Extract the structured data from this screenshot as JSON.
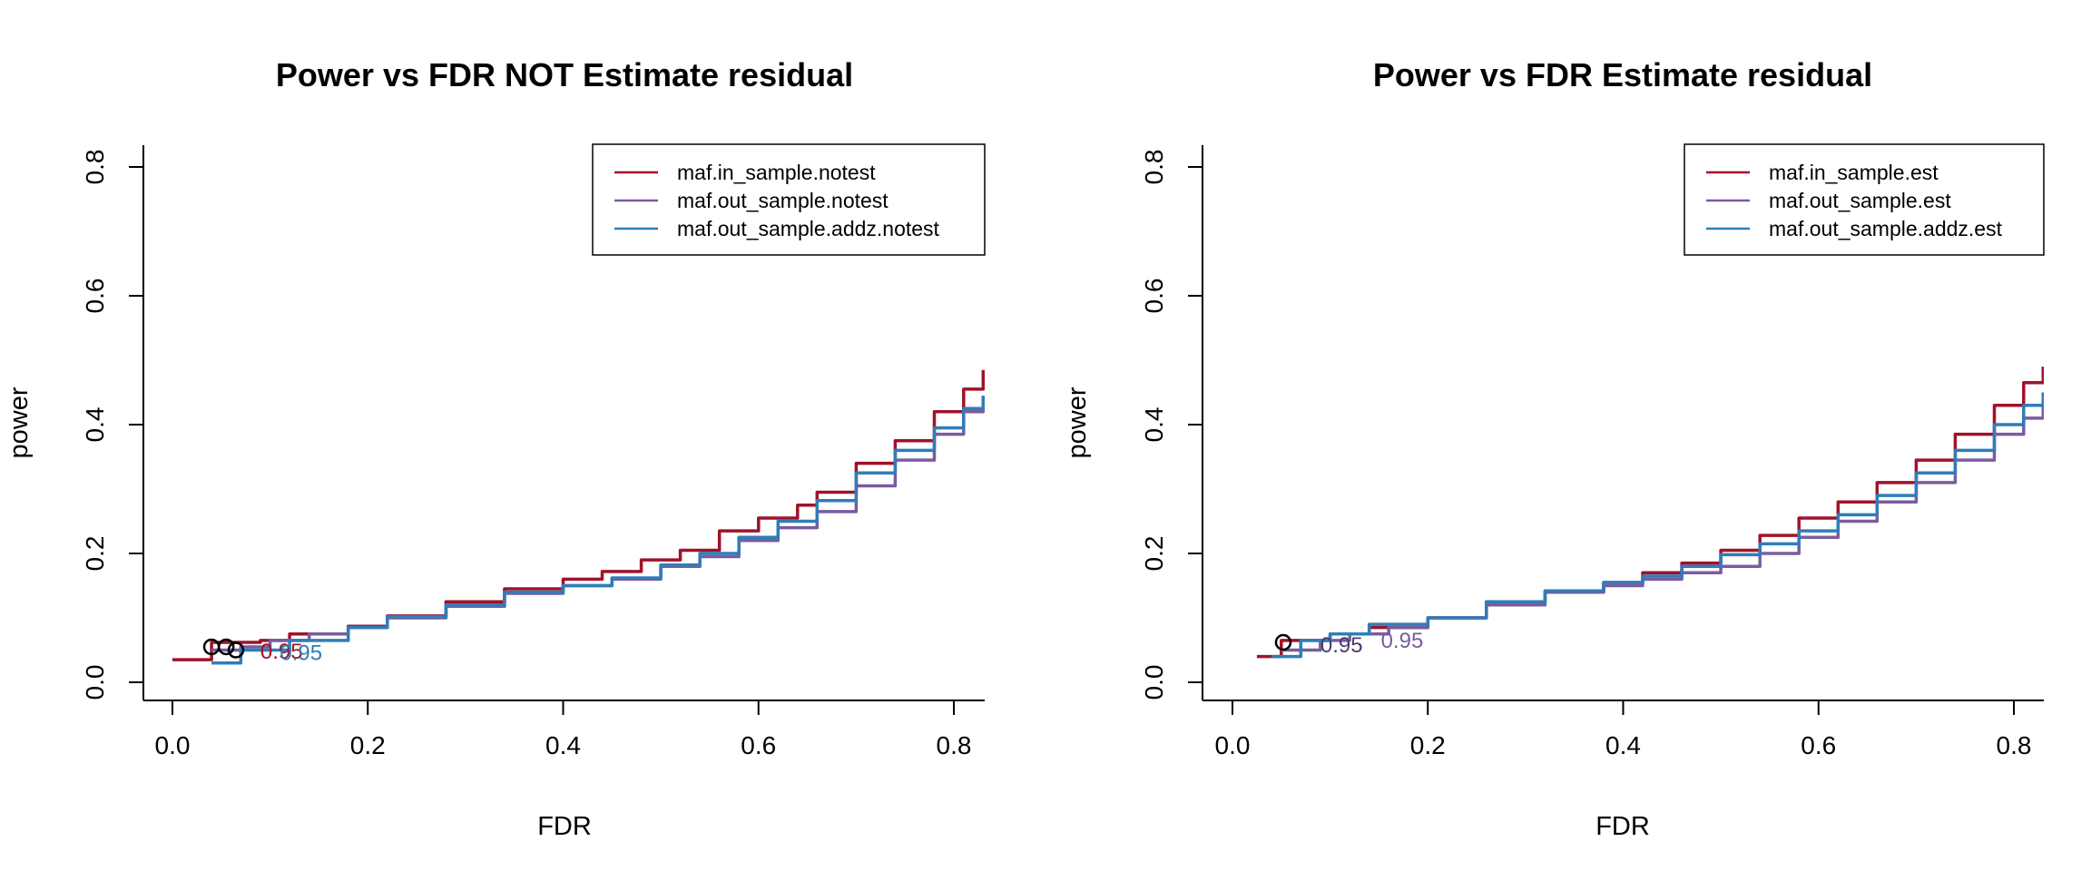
{
  "chart_data": [
    {
      "type": "line",
      "title": "Power vs FDR NOT Estimate residual",
      "xlabel": "FDR",
      "ylabel": "power",
      "xlim": [
        0,
        0.83
      ],
      "ylim": [
        0,
        0.83
      ],
      "xticks": [
        "0.0",
        "0.2",
        "0.4",
        "0.6",
        "0.8"
      ],
      "yticks": [
        "0.0",
        "0.2",
        "0.4",
        "0.6",
        "0.8"
      ],
      "xtick_values": [
        0,
        0.2,
        0.4,
        0.6,
        0.8
      ],
      "ytick_values": [
        0,
        0.2,
        0.4,
        0.6,
        0.8
      ],
      "grid": false,
      "legend": "top-right",
      "series": [
        {
          "name": "maf.in_sample.notest",
          "color": "#A0122A",
          "x": [
            0.0,
            0.04,
            0.04,
            0.06,
            0.09,
            0.12,
            0.18,
            0.22,
            0.28,
            0.34,
            0.4,
            0.44,
            0.48,
            0.52,
            0.56,
            0.6,
            0.64,
            0.66,
            0.7,
            0.74,
            0.78,
            0.81,
            0.83
          ],
          "y": [
            0.035,
            0.035,
            0.062,
            0.062,
            0.065,
            0.075,
            0.087,
            0.103,
            0.125,
            0.145,
            0.16,
            0.172,
            0.19,
            0.205,
            0.235,
            0.255,
            0.275,
            0.295,
            0.34,
            0.375,
            0.42,
            0.455,
            0.485
          ]
        },
        {
          "name": "maf.out_sample.notest",
          "color": "#7A5C9E",
          "x": [
            0.04,
            0.07,
            0.1,
            0.14,
            0.18,
            0.22,
            0.28,
            0.34,
            0.4,
            0.45,
            0.5,
            0.54,
            0.58,
            0.62,
            0.66,
            0.7,
            0.74,
            0.78,
            0.81,
            0.83
          ],
          "y": [
            0.05,
            0.055,
            0.065,
            0.075,
            0.085,
            0.1,
            0.118,
            0.138,
            0.15,
            0.16,
            0.18,
            0.195,
            0.22,
            0.24,
            0.265,
            0.305,
            0.345,
            0.385,
            0.42,
            0.44
          ]
        },
        {
          "name": "maf.out_sample.addz.notest",
          "color": "#2F7DB8",
          "x": [
            0.04,
            0.07,
            0.07,
            0.12,
            0.18,
            0.22,
            0.28,
            0.34,
            0.4,
            0.45,
            0.5,
            0.54,
            0.58,
            0.62,
            0.66,
            0.7,
            0.74,
            0.78,
            0.81,
            0.83
          ],
          "y": [
            0.03,
            0.03,
            0.05,
            0.065,
            0.085,
            0.102,
            0.12,
            0.14,
            0.15,
            0.162,
            0.182,
            0.2,
            0.225,
            0.25,
            0.282,
            0.325,
            0.36,
            0.395,
            0.425,
            0.445
          ]
        }
      ],
      "annotations": [
        {
          "text": "0.95",
          "x": 0.09,
          "y": 0.048,
          "color": "#A0122A"
        },
        {
          "text": "0.95",
          "x": 0.11,
          "y": 0.046,
          "color": "#2F7DB8"
        }
      ],
      "markers": [
        {
          "x": 0.04,
          "y": 0.055
        },
        {
          "x": 0.055,
          "y": 0.055
        },
        {
          "x": 0.065,
          "y": 0.05
        }
      ]
    },
    {
      "type": "line",
      "title": "Power vs FDR Estimate residual",
      "xlabel": "FDR",
      "ylabel": "power",
      "xlim": [
        0,
        0.83
      ],
      "ylim": [
        0,
        0.83
      ],
      "xticks": [
        "0.0",
        "0.2",
        "0.4",
        "0.6",
        "0.8"
      ],
      "yticks": [
        "0.0",
        "0.2",
        "0.4",
        "0.6",
        "0.8"
      ],
      "xtick_values": [
        0,
        0.2,
        0.4,
        0.6,
        0.8
      ],
      "ytick_values": [
        0,
        0.2,
        0.4,
        0.6,
        0.8
      ],
      "grid": false,
      "legend": "top-right",
      "series": [
        {
          "name": "maf.in_sample.est",
          "color": "#A0122A",
          "x": [
            0.025,
            0.05,
            0.1,
            0.14,
            0.2,
            0.26,
            0.32,
            0.38,
            0.42,
            0.46,
            0.5,
            0.54,
            0.58,
            0.62,
            0.66,
            0.7,
            0.74,
            0.78,
            0.81,
            0.83
          ],
          "y": [
            0.04,
            0.065,
            0.075,
            0.085,
            0.1,
            0.125,
            0.14,
            0.155,
            0.17,
            0.185,
            0.205,
            0.228,
            0.255,
            0.28,
            0.31,
            0.345,
            0.385,
            0.43,
            0.465,
            0.49
          ]
        },
        {
          "name": "maf.out_sample.est",
          "color": "#7A5C9E",
          "x": [
            0.05,
            0.09,
            0.12,
            0.16,
            0.2,
            0.26,
            0.32,
            0.38,
            0.42,
            0.46,
            0.5,
            0.54,
            0.58,
            0.62,
            0.66,
            0.7,
            0.74,
            0.78,
            0.81,
            0.83
          ],
          "y": [
            0.05,
            0.065,
            0.075,
            0.085,
            0.1,
            0.12,
            0.14,
            0.15,
            0.16,
            0.17,
            0.18,
            0.2,
            0.225,
            0.25,
            0.28,
            0.31,
            0.345,
            0.385,
            0.41,
            0.44
          ]
        },
        {
          "name": "maf.out_sample.addz.est",
          "color": "#2F7DB8",
          "x": [
            0.04,
            0.07,
            0.1,
            0.14,
            0.2,
            0.26,
            0.32,
            0.38,
            0.42,
            0.46,
            0.5,
            0.54,
            0.58,
            0.62,
            0.66,
            0.7,
            0.74,
            0.78,
            0.81,
            0.83
          ],
          "y": [
            0.04,
            0.065,
            0.075,
            0.09,
            0.1,
            0.125,
            0.142,
            0.155,
            0.165,
            0.18,
            0.198,
            0.215,
            0.235,
            0.26,
            0.29,
            0.325,
            0.36,
            0.4,
            0.43,
            0.45
          ]
        }
      ],
      "annotations": [
        {
          "text": "0.95",
          "x": 0.09,
          "y": 0.058,
          "color": "#4B3A6E"
        },
        {
          "text": "0.95",
          "x": 0.152,
          "y": 0.065,
          "color": "#7A5C9E"
        }
      ],
      "markers": [
        {
          "x": 0.052,
          "y": 0.062
        }
      ]
    }
  ]
}
